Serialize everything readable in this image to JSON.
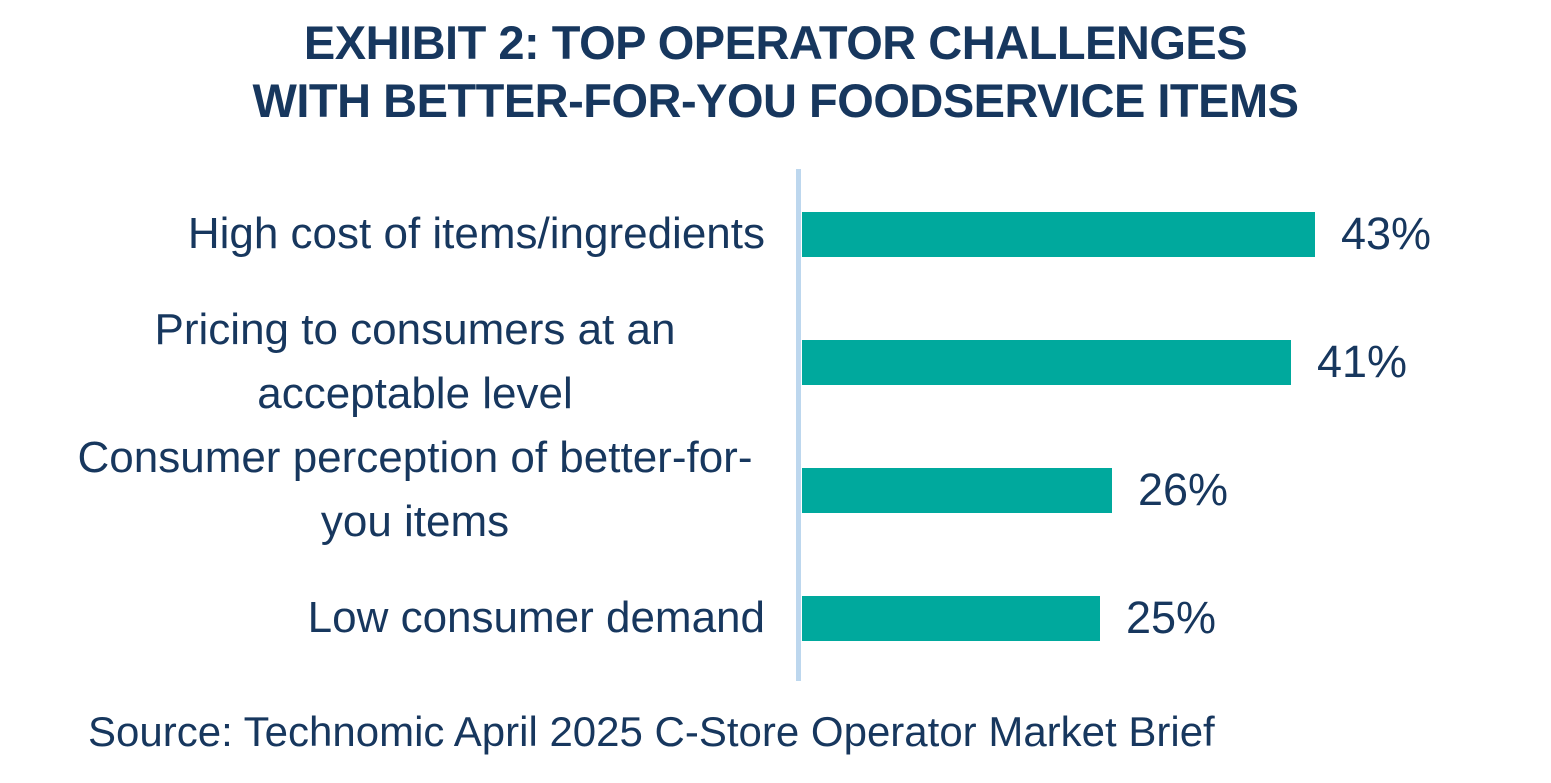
{
  "title": {
    "line1": "EXHIBIT 2: TOP OPERATOR CHALLENGES",
    "line2": "WITH BETTER-FOR-YOU FOODSERVICE ITEMS"
  },
  "source": "Source: Technomic April 2025 C-Store Operator Market Brief",
  "colors": {
    "bar": "#00A99D",
    "text": "#17375E",
    "axis_line": "#BDD7EE",
    "background": "#FFFFFF"
  },
  "chart_data": {
    "type": "bar",
    "orientation": "horizontal",
    "title": "EXHIBIT 2: TOP OPERATOR CHALLENGES WITH BETTER-FOR-YOU FOODSERVICE ITEMS",
    "categories": [
      "High cost of items/ingredients",
      "Pricing to consumers at an acceptable level",
      "Consumer perception of better-for-you items",
      "Low consumer demand"
    ],
    "values": [
      43,
      41,
      26,
      25
    ],
    "value_labels": [
      "43%",
      "41%",
      "26%",
      "25%"
    ],
    "unit": "%",
    "xlabel": "",
    "ylabel": "",
    "xlim": [
      0,
      50
    ],
    "grid": false,
    "legend": false,
    "data_labels_position": "outside-end",
    "source": "Source: Technomic April 2025 C-Store Operator Market Brief"
  }
}
